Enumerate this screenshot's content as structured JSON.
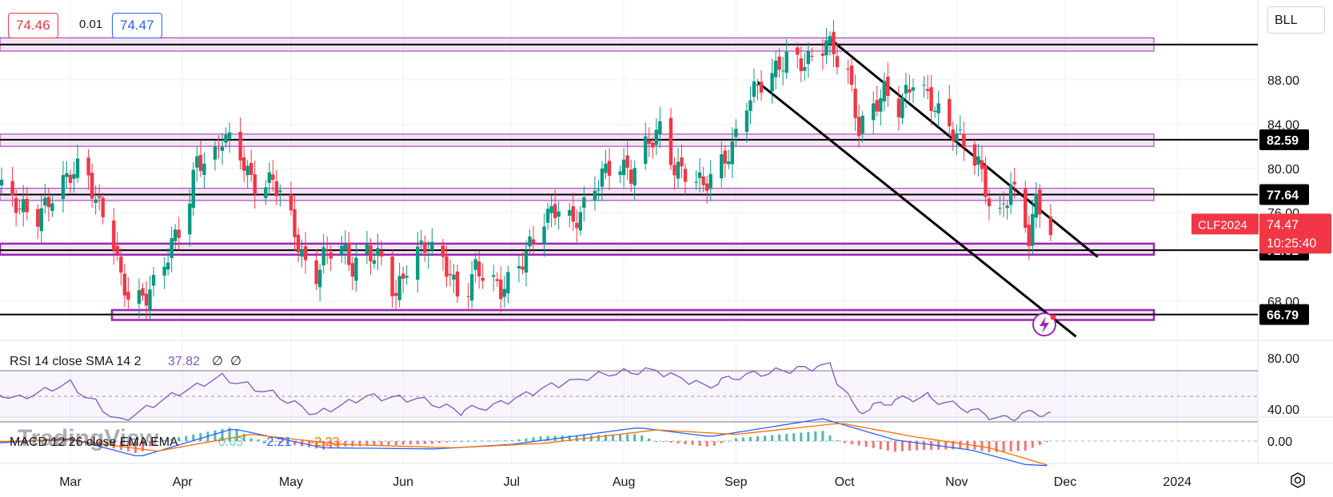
{
  "header": {
    "bid": "74.46",
    "spread": "0.01",
    "ask": "74.47"
  },
  "symbol_box": "BLL",
  "price_label": {
    "symbol": "CLF2024",
    "last": "74.47",
    "countdown": "10:25:40"
  },
  "watermark": "TradingView",
  "rsi_legend": {
    "title": "RSI 14 close SMA 14 2",
    "value": "37.82",
    "extra1": "∅",
    "extra2": "∅"
  },
  "macd_legend": {
    "title": "MACD 12 26 close EMA EMA",
    "hist": "0.03",
    "macd": "-2.21",
    "signal": "-2.23"
  },
  "colors": {
    "up": "#089981",
    "down": "#f23645",
    "zone": "#9c27b0",
    "rsi": "#7e57c2",
    "macd": "#2962ff",
    "signal": "#ff6d00"
  },
  "chart_data": {
    "type": "candlestick",
    "y_ticks": [
      "88.00",
      "84.00",
      "80.00",
      "76.00",
      "68.00"
    ],
    "rsi_ticks": [
      "80.00",
      "40.00"
    ],
    "macd_ticks": [
      "0.00"
    ],
    "x_labels": [
      {
        "label": "Mar",
        "x": "2023-03-01"
      },
      {
        "label": "Apr",
        "x": "2023-04-01"
      },
      {
        "label": "May",
        "x": "2023-05-01"
      },
      {
        "label": "Jun",
        "x": "2023-06-01"
      },
      {
        "label": "Jul",
        "x": "2023-07-01"
      },
      {
        "label": "Aug",
        "x": "2023-08-01"
      },
      {
        "label": "Sep",
        "x": "2023-09-01"
      },
      {
        "label": "Oct",
        "x": "2023-10-01"
      },
      {
        "label": "Nov",
        "x": "2023-11-01"
      },
      {
        "label": "Dec",
        "x": "2023-12-01"
      },
      {
        "label": "2024",
        "x": "2024-01-01"
      }
    ],
    "level_labels": [
      "82.59",
      "77.64",
      "72.61",
      "66.79"
    ],
    "levels": [
      82.59,
      77.64,
      72.61,
      66.79,
      91.2
    ],
    "zones": [
      {
        "low": 90.6,
        "high": 91.8
      },
      {
        "low": 82.0,
        "high": 83.1
      },
      {
        "low": 77.1,
        "high": 78.2
      },
      {
        "low": 72.2,
        "high": 73.2
      },
      {
        "low": 66.3,
        "high": 67.2
      }
    ],
    "channel_lines": [
      {
        "x1": "2023-09-27",
        "y1": 91.7,
        "x2": "2023-12-10",
        "y2": 72.0
      },
      {
        "x1": "2023-09-07",
        "y1": 87.8,
        "x2": "2023-12-04",
        "y2": 64.8
      }
    ],
    "ohlc_close_path": [
      [
        "2023-02-01",
        79.0
      ],
      [
        "2023-02-06",
        80.0
      ],
      [
        "2023-02-10",
        78.2
      ],
      [
        "2023-02-15",
        76.5
      ],
      [
        "2023-02-20",
        75.6
      ],
      [
        "2023-02-24",
        77.5
      ],
      [
        "2023-03-01",
        79.5
      ],
      [
        "2023-03-05",
        80.5
      ],
      [
        "2023-03-08",
        77.0
      ],
      [
        "2023-03-12",
        75.0
      ],
      [
        "2023-03-15",
        70.0
      ],
      [
        "2023-03-18",
        67.8
      ],
      [
        "2023-03-22",
        68.5
      ],
      [
        "2023-03-26",
        70.5
      ],
      [
        "2023-03-29",
        73.2
      ],
      [
        "2023-04-02",
        75.6
      ],
      [
        "2023-04-05",
        80.8
      ],
      [
        "2023-04-09",
        80.2
      ],
      [
        "2023-04-12",
        82.8
      ],
      [
        "2023-04-16",
        82.2
      ],
      [
        "2023-04-19",
        79.5
      ],
      [
        "2023-04-22",
        78.0
      ],
      [
        "2023-04-26",
        79.0
      ],
      [
        "2023-04-30",
        76.5
      ],
      [
        "2023-05-04",
        72.0
      ],
      [
        "2023-05-07",
        69.5
      ],
      [
        "2023-05-10",
        72.0
      ],
      [
        "2023-05-14",
        73.5
      ],
      [
        "2023-05-18",
        71.0
      ],
      [
        "2023-05-22",
        72.5
      ],
      [
        "2023-05-26",
        71.8
      ],
      [
        "2023-05-30",
        68.5
      ],
      [
        "2023-06-03",
        72.0
      ],
      [
        "2023-06-07",
        73.0
      ],
      [
        "2023-06-11",
        72.2
      ],
      [
        "2023-06-14",
        70.5
      ],
      [
        "2023-06-17",
        67.5
      ],
      [
        "2023-06-21",
        71.0
      ],
      [
        "2023-06-25",
        70.0
      ],
      [
        "2023-06-28",
        69.0
      ],
      [
        "2023-07-02",
        70.5
      ],
      [
        "2023-07-06",
        73.0
      ],
      [
        "2023-07-10",
        75.5
      ],
      [
        "2023-07-14",
        76.5
      ],
      [
        "2023-07-18",
        75.0
      ],
      [
        "2023-07-22",
        77.0
      ],
      [
        "2023-07-26",
        79.5
      ],
      [
        "2023-07-30",
        80.5
      ],
      [
        "2023-08-03",
        79.5
      ],
      [
        "2023-08-07",
        82.0
      ],
      [
        "2023-08-11",
        83.5
      ],
      [
        "2023-08-15",
        80.0
      ],
      [
        "2023-08-19",
        79.5
      ],
      [
        "2023-08-23",
        78.5
      ],
      [
        "2023-08-27",
        80.0
      ],
      [
        "2023-08-31",
        81.8
      ],
      [
        "2023-09-03",
        85.5
      ],
      [
        "2023-09-07",
        87.5
      ],
      [
        "2023-09-11",
        88.5
      ],
      [
        "2023-09-15",
        90.0
      ],
      [
        "2023-09-19",
        89.5
      ],
      [
        "2023-09-23",
        90.0
      ],
      [
        "2023-09-26",
        91.6
      ],
      [
        "2023-09-29",
        90.0
      ],
      [
        "2023-10-02",
        88.5
      ],
      [
        "2023-10-05",
        83.5
      ],
      [
        "2023-10-08",
        85.0
      ],
      [
        "2023-10-12",
        87.0
      ],
      [
        "2023-10-16",
        85.5
      ],
      [
        "2023-10-20",
        88.0
      ],
      [
        "2023-10-24",
        86.5
      ],
      [
        "2023-10-28",
        84.5
      ],
      [
        "2023-11-01",
        83.0
      ],
      [
        "2023-11-04",
        82.0
      ],
      [
        "2023-11-07",
        80.5
      ],
      [
        "2023-11-10",
        77.0
      ],
      [
        "2023-11-13",
        75.6
      ],
      [
        "2023-11-16",
        78.5
      ],
      [
        "2023-11-19",
        76.0
      ],
      [
        "2023-11-21",
        73.8
      ],
      [
        "2023-11-23",
        77.0
      ],
      [
        "2023-11-25",
        76.0
      ],
      [
        "2023-11-27",
        74.5
      ]
    ],
    "rsi_path": [
      [
        "2023-02-01",
        58
      ],
      [
        "2023-02-15",
        48
      ],
      [
        "2023-03-01",
        60
      ],
      [
        "2023-03-15",
        30
      ],
      [
        "2023-03-29",
        50
      ],
      [
        "2023-04-12",
        65
      ],
      [
        "2023-04-26",
        52
      ],
      [
        "2023-05-08",
        36
      ],
      [
        "2023-05-22",
        50
      ],
      [
        "2023-06-05",
        48
      ],
      [
        "2023-06-17",
        38
      ],
      [
        "2023-06-28",
        44
      ],
      [
        "2023-07-12",
        58
      ],
      [
        "2023-07-28",
        68
      ],
      [
        "2023-08-10",
        70
      ],
      [
        "2023-08-24",
        58
      ],
      [
        "2023-09-02",
        66
      ],
      [
        "2023-09-14",
        70
      ],
      [
        "2023-09-27",
        74
      ],
      [
        "2023-10-05",
        38
      ],
      [
        "2023-10-14",
        46
      ],
      [
        "2023-10-24",
        50
      ],
      [
        "2023-11-04",
        40
      ],
      [
        "2023-11-14",
        32
      ],
      [
        "2023-11-21",
        36
      ],
      [
        "2023-11-27",
        37.82
      ]
    ],
    "macd_path": [
      [
        "2023-02-01",
        -0.3
      ],
      [
        "2023-03-01",
        0.2
      ],
      [
        "2023-03-20",
        -1.4
      ],
      [
        "2023-04-15",
        1.1
      ],
      [
        "2023-05-10",
        -0.6
      ],
      [
        "2023-06-10",
        -0.7
      ],
      [
        "2023-07-01",
        -0.3
      ],
      [
        "2023-08-05",
        1.2
      ],
      [
        "2023-08-25",
        0.4
      ],
      [
        "2023-09-25",
        2.0
      ],
      [
        "2023-10-15",
        0.1
      ],
      [
        "2023-11-05",
        -0.8
      ],
      [
        "2023-11-20",
        -2.1
      ],
      [
        "2023-11-27",
        -2.21
      ]
    ],
    "signal_path": [
      [
        "2023-02-01",
        -0.1
      ],
      [
        "2023-03-01",
        0.1
      ],
      [
        "2023-03-25",
        -0.9
      ],
      [
        "2023-04-20",
        0.6
      ],
      [
        "2023-05-15",
        -0.3
      ],
      [
        "2023-06-15",
        -0.6
      ],
      [
        "2023-07-10",
        -0.2
      ],
      [
        "2023-08-10",
        1.0
      ],
      [
        "2023-09-01",
        0.6
      ],
      [
        "2023-09-30",
        1.6
      ],
      [
        "2023-10-20",
        0.4
      ],
      [
        "2023-11-10",
        -0.6
      ],
      [
        "2023-11-27",
        -2.23
      ]
    ]
  }
}
